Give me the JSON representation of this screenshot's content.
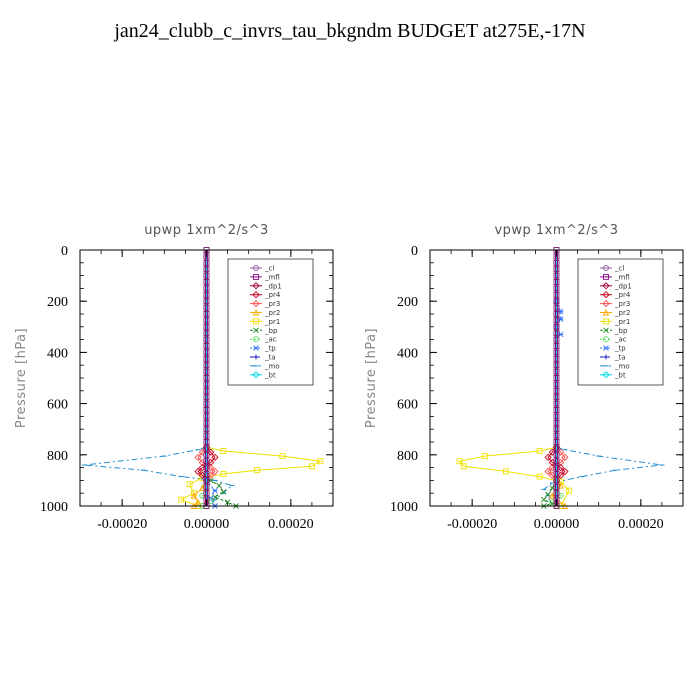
{
  "page": {
    "title": "jan24_clubb_c_invrs_tau_bkgndm  BUDGET at275E,-17N"
  },
  "legend_entries": [
    "_cl",
    "_mfl",
    "_dp1",
    "_pr4",
    "_pr3",
    "_pr2",
    "_pr1",
    "_bp",
    "_ac",
    "_tp",
    "_ta",
    "_mo",
    "_bt"
  ],
  "series_colors": {
    "_cl": "#8c5aa0",
    "_mfl": "#8b0a8b",
    "_dp1": "#a0003c",
    "_pr4": "#c8001e",
    "_pr3": "#ff5050",
    "_pr2": "#ffaa00",
    "_pr1": "#f0e000",
    "_bp": "#228b22",
    "_ac": "#55dd55",
    "_tp": "#3070ff",
    "_ta": "#1010c0",
    "_mo": "#2090d0",
    "_bt": "#00d8e8"
  },
  "chart_data": [
    {
      "type": "line",
      "title": "upwp  1xm^2/s^3",
      "xlabel": "",
      "ylabel": "Pressure [hPa]",
      "xlim": [
        -0.0003,
        0.0003
      ],
      "ylim": [
        1000,
        0
      ],
      "xticks": [
        -0.0002,
        0,
        0.0002
      ],
      "xtick_labels": [
        "-0.00020",
        "0.00000",
        "0.00020"
      ],
      "yticks": [
        0,
        200,
        400,
        600,
        800,
        1000
      ],
      "ytick_labels": [
        "0",
        "200",
        "400",
        "600",
        "800",
        "1000"
      ],
      "grid": false,
      "legend_position": "top-right",
      "series": [
        {
          "name": "_mo",
          "x": [
            0,
            -2e-05,
            -0.0001,
            -0.00029,
            -0.00015,
            -6e-05,
            2e-05,
            6e-05,
            4e-05,
            2e-05,
            1e-05
          ],
          "y": [
            770,
            780,
            805,
            840,
            860,
            885,
            900,
            920,
            950,
            975,
            1000
          ]
        },
        {
          "name": "_pr1",
          "x": [
            0,
            4e-05,
            0.00018,
            0.00027,
            0.00025,
            0.00012,
            4e-05,
            -1e-05,
            -4e-05,
            -3e-05,
            -6e-05,
            -2e-05
          ],
          "y": [
            770,
            785,
            805,
            825,
            845,
            860,
            875,
            890,
            915,
            950,
            975,
            1000
          ]
        },
        {
          "name": "_pr3",
          "x": [
            0,
            -1e-05,
            -2e-05,
            -1e-05,
            1e-05,
            2e-05,
            1e-05,
            0
          ],
          "y": [
            770,
            790,
            810,
            830,
            850,
            865,
            880,
            900
          ]
        },
        {
          "name": "_pr4",
          "x": [
            0,
            1e-05,
            2e-05,
            1e-05,
            -1e-05,
            -2e-05,
            -1e-05,
            0
          ],
          "y": [
            770,
            790,
            810,
            830,
            850,
            865,
            880,
            900
          ]
        },
        {
          "name": "_bp",
          "x": [
            0,
            1e-05,
            3e-05,
            4e-05,
            2e-05,
            5e-05,
            7e-05
          ],
          "y": [
            880,
            900,
            920,
            945,
            965,
            985,
            1000
          ]
        },
        {
          "name": "_pr2",
          "x": [
            0,
            -1e-05,
            -3e-05,
            -2e-05,
            -3e-05
          ],
          "y": [
            900,
            930,
            960,
            985,
            1000
          ]
        },
        {
          "name": "_tp",
          "x": [
            0,
            2e-05,
            1e-05,
            2e-05
          ],
          "y": [
            900,
            940,
            970,
            1000
          ]
        },
        {
          "name": "_ac",
          "x": [
            0,
            -1e-05,
            1e-05,
            -1e-05
          ],
          "y": [
            930,
            960,
            980,
            1000
          ]
        },
        {
          "name": "_mfl",
          "x": [
            0,
            0
          ],
          "y": [
            0,
            1000
          ]
        },
        {
          "name": "_bt",
          "x": [
            0,
            0
          ],
          "y": [
            0,
            1000
          ]
        }
      ]
    },
    {
      "type": "line",
      "title": "vpwp  1xm^2/s^3",
      "xlabel": "",
      "ylabel": "Pressure [hPa]",
      "xlim": [
        -0.0003,
        0.0003
      ],
      "ylim": [
        1000,
        0
      ],
      "xticks": [
        -0.0002,
        0,
        0.0002
      ],
      "xtick_labels": [
        "-0.00020",
        "0.00000",
        "0.00020"
      ],
      "yticks": [
        0,
        200,
        400,
        600,
        800,
        1000
      ],
      "ytick_labels": [
        "0",
        "200",
        "400",
        "600",
        "800",
        "1000"
      ],
      "grid": false,
      "legend_position": "top-right",
      "series": [
        {
          "name": "_mo",
          "x": [
            0,
            2e-05,
            0.0001,
            0.00025,
            0.00014,
            6e-05,
            -1e-05,
            -3e-05,
            -2e-05,
            -1e-05
          ],
          "y": [
            770,
            780,
            805,
            840,
            860,
            885,
            910,
            935,
            960,
            1000
          ]
        },
        {
          "name": "_pr1",
          "x": [
            0,
            -4e-05,
            -0.00017,
            -0.00023,
            -0.00022,
            -0.00012,
            -4e-05,
            1e-05,
            3e-05,
            1e-05
          ],
          "y": [
            770,
            785,
            805,
            825,
            845,
            865,
            885,
            905,
            940,
            1000
          ]
        },
        {
          "name": "_pr3",
          "x": [
            0,
            1e-05,
            2e-05,
            1e-05,
            -1e-05,
            -2e-05,
            -1e-05,
            0
          ],
          "y": [
            770,
            790,
            810,
            830,
            850,
            865,
            880,
            900
          ]
        },
        {
          "name": "_pr4",
          "x": [
            0,
            -1e-05,
            -2e-05,
            -1e-05,
            1e-05,
            2e-05,
            1e-05,
            0
          ],
          "y": [
            770,
            790,
            810,
            830,
            850,
            865,
            880,
            900
          ]
        },
        {
          "name": "_bp",
          "x": [
            0,
            -1e-05,
            -2e-05,
            -3e-05,
            -1e-05,
            -3e-05
          ],
          "y": [
            900,
            930,
            955,
            975,
            990,
            1000
          ]
        },
        {
          "name": "_pr2",
          "x": [
            0,
            1e-05,
            -1e-05,
            2e-05
          ],
          "y": [
            880,
            920,
            960,
            1000
          ]
        },
        {
          "name": "_tp",
          "x": [
            0,
            1e-05,
            1e-05,
            0,
            1e-05
          ],
          "y": [
            200,
            240,
            270,
            300,
            330
          ]
        },
        {
          "name": "_ac",
          "x": [
            0,
            1e-05,
            -1e-05,
            0
          ],
          "y": [
            930,
            960,
            985,
            1000
          ]
        },
        {
          "name": "_mfl",
          "x": [
            0,
            0
          ],
          "y": [
            0,
            1000
          ]
        },
        {
          "name": "_bt",
          "x": [
            0,
            0
          ],
          "y": [
            0,
            1000
          ]
        }
      ]
    }
  ]
}
